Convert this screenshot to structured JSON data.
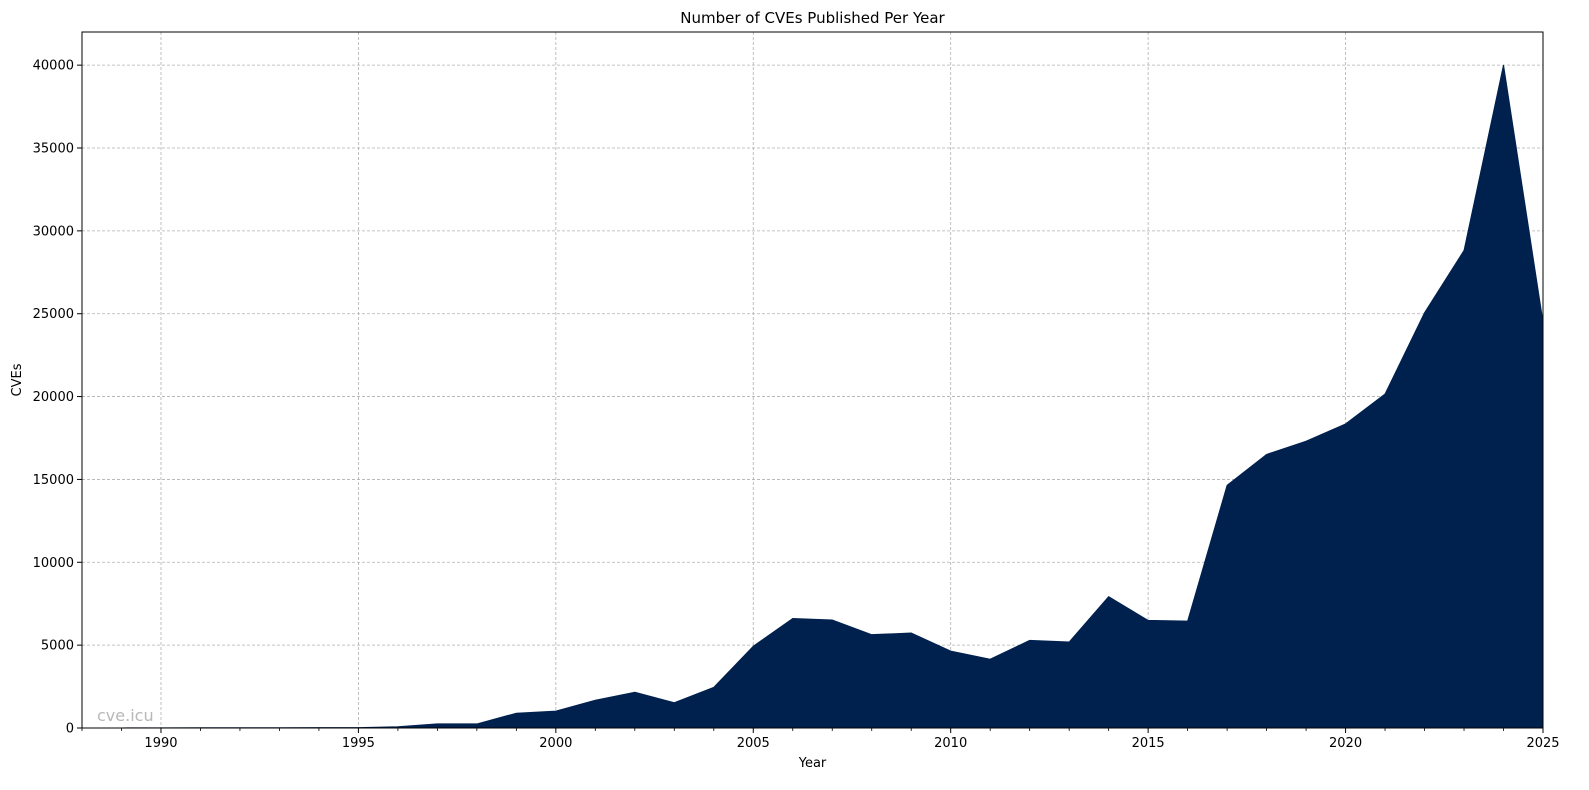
{
  "chart_data": {
    "type": "area",
    "title": "Number of CVEs Published Per Year",
    "xlabel": "Year",
    "ylabel": "CVEs",
    "xlim": [
      1988,
      2025
    ],
    "ylim": [
      0,
      42000
    ],
    "x_ticks": [
      1990,
      1995,
      2000,
      2005,
      2010,
      2015,
      2020,
      2025
    ],
    "y_ticks": [
      0,
      5000,
      10000,
      15000,
      20000,
      25000,
      30000,
      35000,
      40000
    ],
    "grid": true,
    "fill_color": "#00214e",
    "watermark": "cve.icu",
    "series": [
      {
        "name": "CVEs",
        "x": [
          1988,
          1989,
          1990,
          1991,
          1992,
          1993,
          1994,
          1995,
          1996,
          1997,
          1998,
          1999,
          2000,
          2001,
          2002,
          2003,
          2004,
          2005,
          2006,
          2007,
          2008,
          2009,
          2010,
          2011,
          2012,
          2013,
          2014,
          2015,
          2016,
          2017,
          2018,
          2019,
          2020,
          2021,
          2022,
          2023,
          2024,
          2025
        ],
        "values": [
          2,
          3,
          11,
          15,
          13,
          13,
          25,
          25,
          75,
          252,
          246,
          894,
          1020,
          1677,
          2156,
          1527,
          2451,
          4935,
          6610,
          6520,
          5632,
          5732,
          4639,
          4150,
          5288,
          5187,
          7928,
          6494,
          6449,
          14643,
          16509,
          17305,
          18350,
          20155,
          25059,
          28818,
          40009,
          24500
        ]
      }
    ]
  }
}
